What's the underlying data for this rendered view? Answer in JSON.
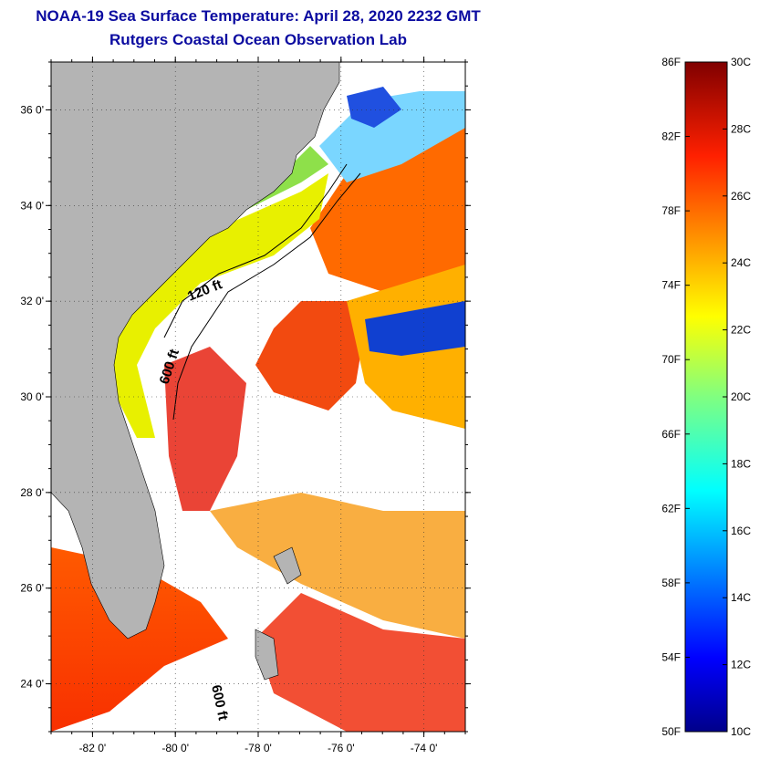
{
  "header": {
    "title": "NOAA-19 Sea Surface Temperature:  April 28, 2020 2232 GMT",
    "subtitle": "Rutgers Coastal Ocean Observation Lab"
  },
  "map": {
    "lon_range": [
      -83,
      -73
    ],
    "lat_range": [
      23,
      37
    ],
    "lon_ticks": [
      {
        "value": -82,
        "label": "-82 0'"
      },
      {
        "value": -80,
        "label": "-80 0'"
      },
      {
        "value": -78,
        "label": "-78 0'"
      },
      {
        "value": -76,
        "label": "-76 0'"
      },
      {
        "value": -74,
        "label": "-74 0'"
      }
    ],
    "lat_ticks": [
      {
        "value": 36,
        "label": "36 0'"
      },
      {
        "value": 34,
        "label": "34 0'"
      },
      {
        "value": 32,
        "label": "32 0'"
      },
      {
        "value": 30,
        "label": "30 0'"
      },
      {
        "value": 28,
        "label": "28 0'"
      },
      {
        "value": 26,
        "label": "26 0'"
      },
      {
        "value": 24,
        "label": "24 0'"
      }
    ],
    "contour_labels": [
      {
        "text": "120 ft"
      },
      {
        "text": "600 ft"
      },
      {
        "text": "600 ft"
      }
    ],
    "colors": {
      "land": "#b4b4b4",
      "cloud": "#ffffff",
      "frame": "#000000"
    }
  },
  "colorbar": {
    "fahrenheit_labels": [
      "86F",
      "82F",
      "78F",
      "74F",
      "70F",
      "66F",
      "62F",
      "58F",
      "54F",
      "50F"
    ],
    "celsius_labels": [
      "30C",
      "28C",
      "26C",
      "24C",
      "22C",
      "20C",
      "18C",
      "16C",
      "14C",
      "12C",
      "10C"
    ],
    "range_c": [
      10,
      30
    ]
  }
}
